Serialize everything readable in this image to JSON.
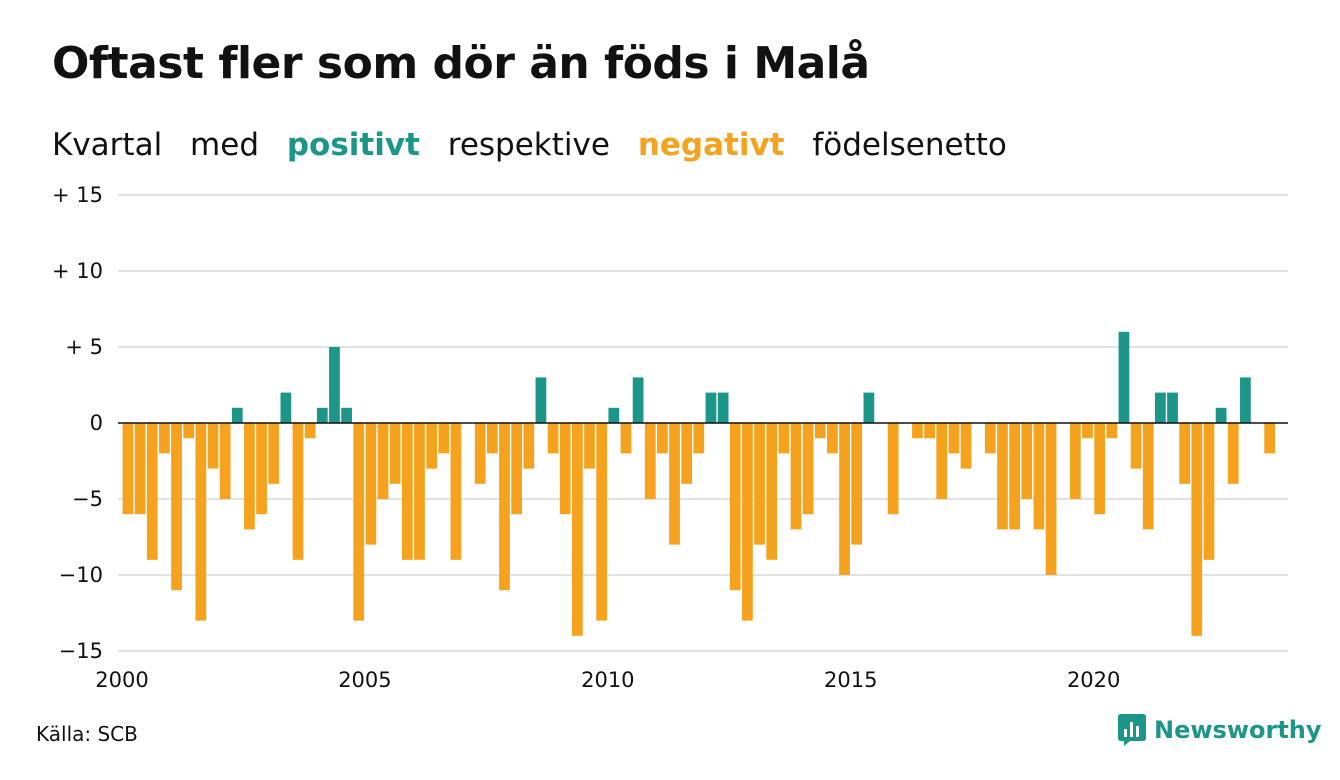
{
  "title": "Oftast fler som dör än föds i Malå",
  "subtitle": {
    "w1": "Kvartal",
    "w2": "med",
    "positive": "positivt",
    "w3": "respektive",
    "negative": "negativt",
    "w4": "födelsenetto"
  },
  "source": "Källa: SCB",
  "brand": {
    "name": "Newsworthy",
    "icon": "bar-chart-icon"
  },
  "colors": {
    "positive": "#1d968a",
    "negative": "#f5a21f",
    "grid": "#e2e2e2",
    "axis": "#111111"
  },
  "chart_data": {
    "type": "bar",
    "title": "Oftast fler som dör än föds i Malå",
    "subtitle": "Kvartal med positivt respektive negativt födelsenetto",
    "xlabel": "",
    "ylabel": "",
    "ylim": [
      -15,
      15
    ],
    "yticks": [
      15,
      10,
      5,
      0,
      -5,
      -10,
      -15
    ],
    "ytick_labels": [
      "+ 15",
      "+ 10",
      "+  5",
      "0",
      "−5",
      "−10",
      "−15"
    ],
    "x_tick_labels": [
      "2000",
      "2005",
      "2010",
      "2015",
      "2020"
    ],
    "x_tick_years": [
      2000,
      2005,
      2010,
      2015,
      2020
    ],
    "start_year": 2000,
    "end_year": 2024,
    "grid": true,
    "legend": "none",
    "values": [
      -6,
      -6,
      -9,
      -2,
      -11,
      -1,
      -13,
      -3,
      -5,
      1,
      -7,
      -6,
      -4,
      2,
      -9,
      -1,
      1,
      5,
      1,
      -13,
      -8,
      -5,
      -4,
      -9,
      -9,
      -3,
      -2,
      -9,
      0,
      -4,
      -2,
      -11,
      -6,
      -3,
      3,
      -2,
      -6,
      -14,
      -3,
      -13,
      1,
      -2,
      3,
      -5,
      -2,
      -8,
      -4,
      -2,
      2,
      2,
      -11,
      -13,
      -8,
      -9,
      -2,
      -7,
      -6,
      -1,
      -2,
      -10,
      -8,
      2,
      0,
      -6,
      0,
      -1,
      -1,
      -5,
      -2,
      -3,
      0,
      -2,
      -7,
      -7,
      -5,
      -7,
      -10,
      0,
      -5,
      -1,
      -6,
      -1,
      6,
      -3,
      -7,
      2,
      2,
      -4,
      -14,
      -9,
      1,
      -4,
      3,
      0,
      -2
    ]
  }
}
